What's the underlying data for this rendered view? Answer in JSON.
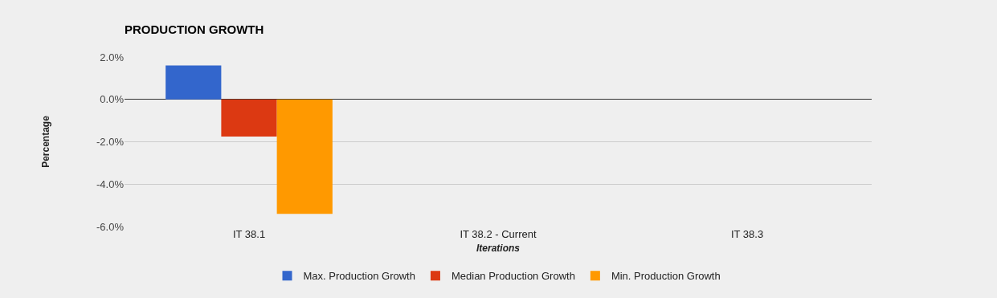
{
  "chart_data": {
    "type": "bar",
    "title": "PRODUCTION GROWTH",
    "xlabel": "Iterations",
    "ylabel": "Percentage",
    "categories": [
      "IT 38.1",
      "IT 38.2 - Current",
      "IT 38.3"
    ],
    "series": [
      {
        "name": "Max. Production Growth",
        "color": "#3366cc",
        "values": [
          1.6,
          null,
          null
        ]
      },
      {
        "name": "Median Production Growth",
        "color": "#dc3912",
        "values": [
          -1.75,
          null,
          null
        ]
      },
      {
        "name": "Min. Production Growth",
        "color": "#ff9900",
        "values": [
          -5.4,
          null,
          null
        ]
      }
    ],
    "ylim": [
      -6,
      2
    ],
    "yticks": [
      {
        "value": -6,
        "label": "-6.0%"
      },
      {
        "value": -4,
        "label": "-4.0%"
      },
      {
        "value": -2,
        "label": "-2.0%"
      },
      {
        "value": 0,
        "label": "0.0%"
      },
      {
        "value": 2,
        "label": "2.0%"
      }
    ],
    "grid": "y",
    "legend": "bottom"
  }
}
